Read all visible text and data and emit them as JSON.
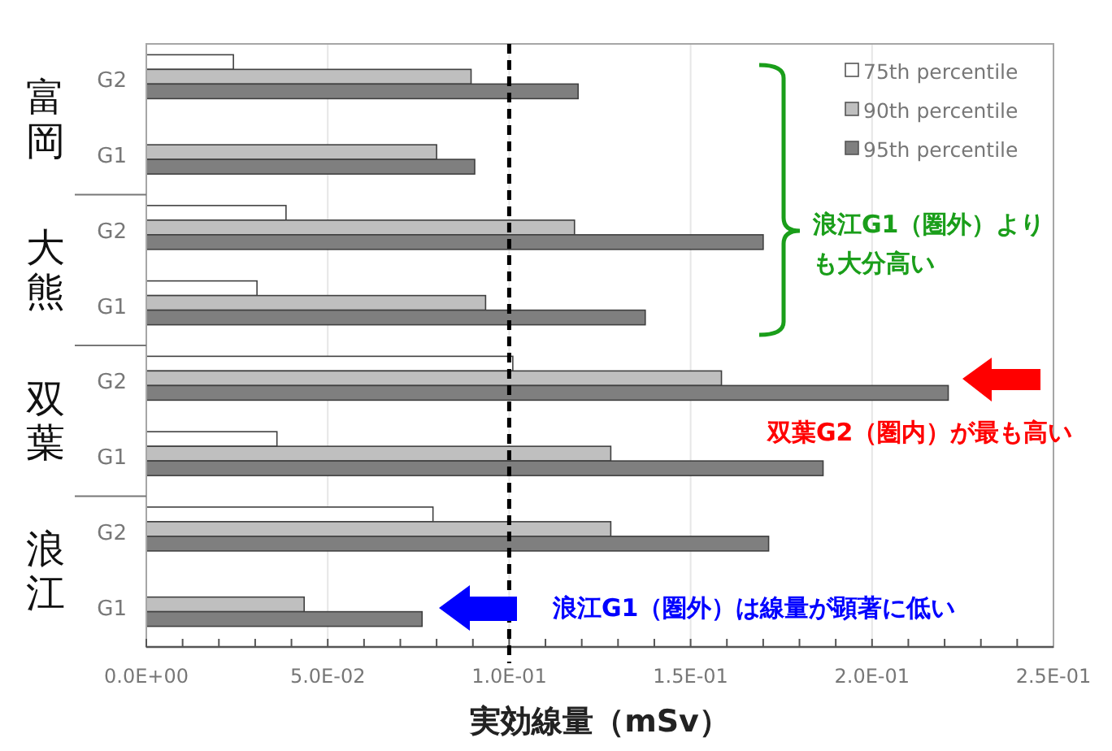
{
  "chart_data": {
    "type": "bar",
    "orientation": "horizontal",
    "xlabel": "実効線量（mSv）",
    "categories": [
      "G2",
      "G1",
      "G2",
      "G1",
      "G2",
      "G1",
      "G2",
      "G1"
    ],
    "series": [
      {
        "name": "75th percentile",
        "color": "#ffffff",
        "values": [
          0.024,
          null,
          0.0385,
          0.0305,
          0.101,
          0.036,
          0.079,
          null
        ]
      },
      {
        "name": "90th percentile",
        "color": "#bfbfbf",
        "values": [
          0.0895,
          0.08,
          0.118,
          0.0935,
          0.1585,
          0.128,
          0.128,
          0.0435
        ]
      },
      {
        "name": "95th percentile",
        "color": "#7f7f7f",
        "values": [
          0.119,
          0.0905,
          0.17,
          0.1375,
          0.221,
          0.1865,
          0.1715,
          0.076
        ]
      }
    ],
    "xlim": [
      0,
      0.25
    ],
    "xticks": [
      {
        "value": 0,
        "label": "0.0E+00"
      },
      {
        "value": 0.05,
        "label": "5.0E-02"
      },
      {
        "value": 0.1,
        "label": "1.0E-01"
      },
      {
        "value": 0.15,
        "label": "1.5E-01"
      },
      {
        "value": 0.2,
        "label": "2.0E-01"
      },
      {
        "value": 0.25,
        "label": "2.5E-01"
      }
    ],
    "ref_lines": [
      {
        "axis": "x",
        "value": 0.1,
        "color": "#000000",
        "line_style": "dashed"
      }
    ],
    "grid": "x",
    "legend": "top right",
    "annotations": [
      "富岡",
      "大熊",
      "双葉",
      "浪江",
      "浪江G1（圏外）よりも大分高い",
      "双葉G2（圏内）が最も高い",
      "浪江G1（圏外）は線量が顕著に低い"
    ]
  }
}
